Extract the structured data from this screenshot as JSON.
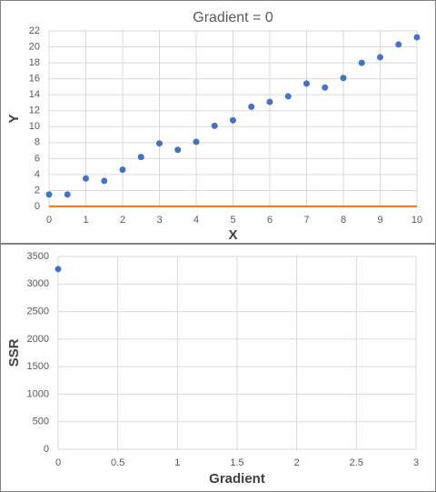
{
  "chart_data": [
    {
      "type": "scatter",
      "title": "Gradient = 0",
      "x_label": "X",
      "y_label": "Y",
      "xlim": [
        0,
        10
      ],
      "xticks": [
        0,
        1,
        2,
        3,
        4,
        5,
        6,
        7,
        8,
        9,
        10
      ],
      "ylim": [
        0,
        22
      ],
      "yticks": [
        0,
        2,
        4,
        6,
        8,
        10,
        12,
        14,
        16,
        18,
        20,
        22
      ],
      "grid": true,
      "series": [
        {
          "color": "#4472c4",
          "x": [
            0,
            0.5,
            1,
            1.5,
            2,
            2.5,
            3,
            3.5,
            4,
            4.5,
            5,
            5.5,
            6,
            6.5,
            7,
            7.5,
            8,
            8.5,
            9,
            9.5,
            10
          ],
          "values": [
            1.5,
            1.5,
            3.5,
            3.2,
            4.6,
            6.2,
            7.9,
            7.1,
            8.1,
            10.1,
            10.8,
            12.5,
            13.1,
            13.8,
            15.4,
            14.9,
            16.1,
            18.0,
            18.7,
            20.3,
            21.2
          ]
        },
        {
          "type": "line",
          "color": "#ed7d31",
          "x": [
            0,
            10
          ],
          "values": [
            0,
            0
          ]
        }
      ]
    },
    {
      "type": "scatter",
      "x_label": "Gradient",
      "y_label": "SSR",
      "xlim": [
        0,
        3
      ],
      "xticks": [
        0,
        0.5,
        1,
        1.5,
        2,
        2.5,
        3
      ],
      "ylim": [
        0,
        3500
      ],
      "yticks": [
        0,
        500,
        1000,
        1500,
        2000,
        2500,
        3000,
        3500
      ],
      "grid": true,
      "series": [
        {
          "color": "#4472c4",
          "x": [
            0
          ],
          "values": [
            3270
          ]
        }
      ]
    }
  ]
}
